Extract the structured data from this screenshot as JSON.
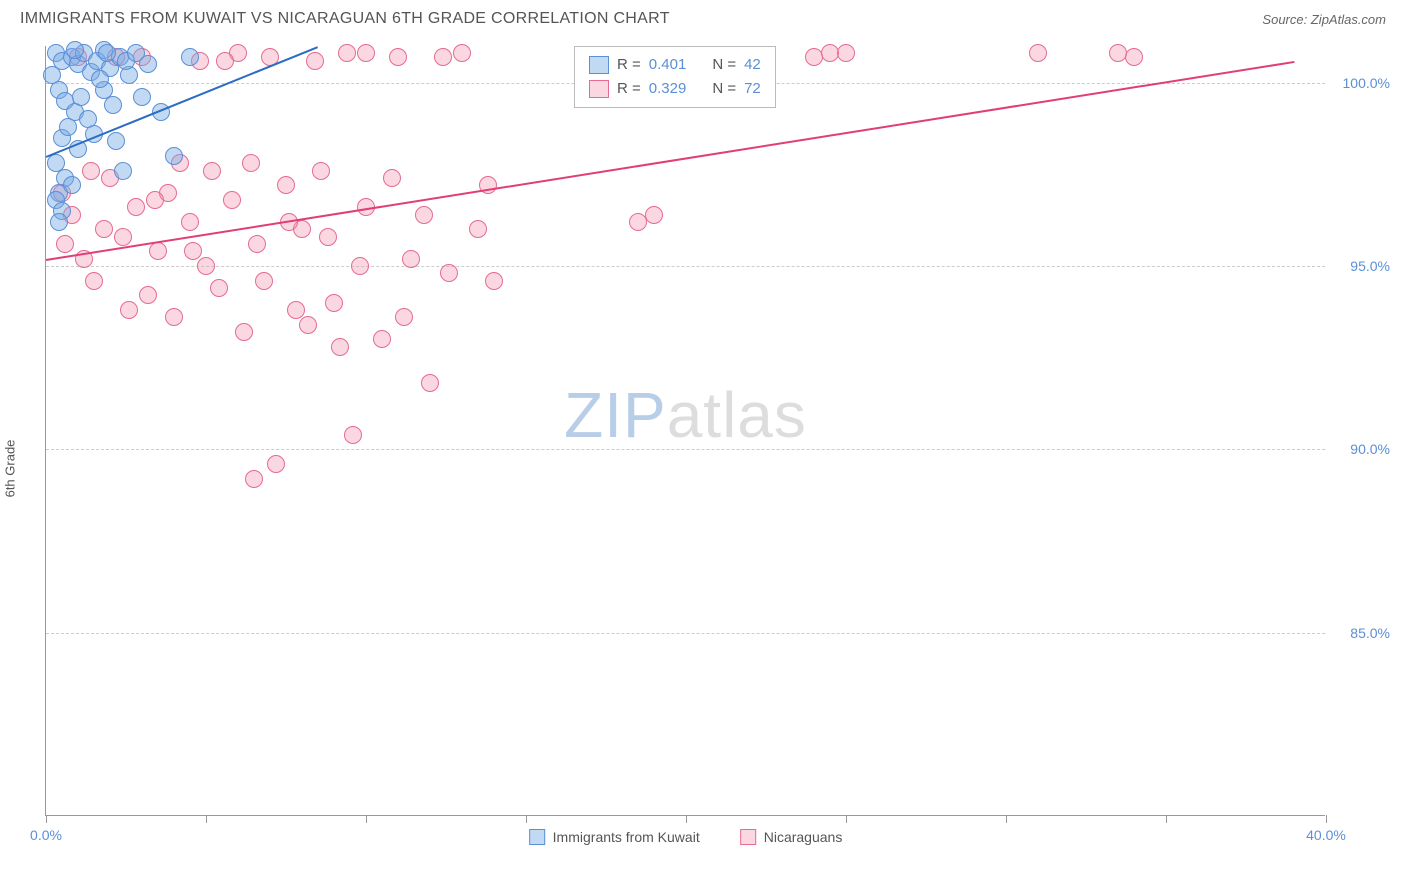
{
  "header": {
    "title": "IMMIGRANTS FROM KUWAIT VS NICARAGUAN 6TH GRADE CORRELATION CHART",
    "source_label": "Source:",
    "source_name": "ZipAtlas.com"
  },
  "chart": {
    "type": "scatter",
    "ylabel": "6th Grade",
    "xlim": [
      0,
      40
    ],
    "ylim": [
      80,
      101
    ],
    "xtick_values": [
      0,
      5,
      10,
      15,
      20,
      25,
      30,
      35,
      40
    ],
    "xtick_labels": {
      "0": "0.0%",
      "40": "40.0%"
    },
    "ytick_values": [
      85,
      90,
      95,
      100
    ],
    "ytick_labels": {
      "85": "85.0%",
      "90": "90.0%",
      "95": "95.0%",
      "100": "100.0%"
    },
    "background_color": "#ffffff",
    "grid_color": "#cccccc",
    "axis_color": "#999999",
    "tick_label_color": "#5b8fd6",
    "watermark": {
      "part1": "ZIP",
      "part2": "atlas",
      "color1": "#b8cde8",
      "color2": "#dddddd"
    },
    "series": [
      {
        "name": "Immigrants from Kuwait",
        "color_fill": "rgba(120,170,230,0.45)",
        "color_stroke": "#5b8fd6",
        "trend_color": "#2c6cc2",
        "marker_radius": 9,
        "R": "0.401",
        "N": "42",
        "trend": {
          "x1": 0,
          "y1": 98.0,
          "x2": 8.5,
          "y2": 101.0
        },
        "points": [
          [
            0.3,
            100.8
          ],
          [
            0.5,
            100.6
          ],
          [
            0.8,
            100.7
          ],
          [
            1.0,
            100.5
          ],
          [
            1.2,
            100.8
          ],
          [
            1.4,
            100.3
          ],
          [
            1.6,
            100.6
          ],
          [
            1.8,
            100.9
          ],
          [
            0.4,
            99.8
          ],
          [
            0.6,
            99.5
          ],
          [
            0.9,
            99.2
          ],
          [
            1.1,
            99.6
          ],
          [
            1.3,
            99.0
          ],
          [
            0.5,
            98.5
          ],
          [
            0.7,
            98.8
          ],
          [
            1.0,
            98.2
          ],
          [
            0.3,
            97.8
          ],
          [
            0.6,
            97.4
          ],
          [
            0.4,
            97.0
          ],
          [
            0.8,
            97.2
          ],
          [
            0.3,
            96.8
          ],
          [
            0.5,
            96.5
          ],
          [
            0.4,
            96.2
          ],
          [
            2.0,
            100.4
          ],
          [
            2.3,
            100.7
          ],
          [
            2.6,
            100.2
          ],
          [
            2.1,
            99.4
          ],
          [
            2.5,
            100.6
          ],
          [
            2.8,
            100.8
          ],
          [
            3.2,
            100.5
          ],
          [
            3.6,
            99.2
          ],
          [
            4.0,
            98.0
          ],
          [
            4.5,
            100.7
          ],
          [
            1.5,
            98.6
          ],
          [
            1.8,
            99.8
          ],
          [
            2.2,
            98.4
          ],
          [
            0.2,
            100.2
          ],
          [
            0.9,
            100.9
          ],
          [
            1.7,
            100.1
          ],
          [
            3.0,
            99.6
          ],
          [
            2.4,
            97.6
          ],
          [
            1.9,
            100.8
          ]
        ]
      },
      {
        "name": "Nicaraguans",
        "color_fill": "rgba(240,140,170,0.35)",
        "color_stroke": "#e66b94",
        "trend_color": "#e03e74",
        "marker_radius": 9,
        "R": "0.329",
        "N": "72",
        "trend": {
          "x1": 0,
          "y1": 95.2,
          "x2": 39.0,
          "y2": 100.6
        },
        "points": [
          [
            0.5,
            97.0
          ],
          [
            0.8,
            96.4
          ],
          [
            1.2,
            95.2
          ],
          [
            1.5,
            94.6
          ],
          [
            1.8,
            96.0
          ],
          [
            2.0,
            97.4
          ],
          [
            2.4,
            95.8
          ],
          [
            2.8,
            96.6
          ],
          [
            3.2,
            94.2
          ],
          [
            3.5,
            95.4
          ],
          [
            3.8,
            97.0
          ],
          [
            4.0,
            93.6
          ],
          [
            4.5,
            96.2
          ],
          [
            4.8,
            100.6
          ],
          [
            5.0,
            95.0
          ],
          [
            5.4,
            94.4
          ],
          [
            5.8,
            96.8
          ],
          [
            6.0,
            100.8
          ],
          [
            6.2,
            93.2
          ],
          [
            6.6,
            95.6
          ],
          [
            7.0,
            100.7
          ],
          [
            7.2,
            89.6
          ],
          [
            7.5,
            97.2
          ],
          [
            8.0,
            96.0
          ],
          [
            8.4,
            100.6
          ],
          [
            8.8,
            95.8
          ],
          [
            9.0,
            94.0
          ],
          [
            9.2,
            92.8
          ],
          [
            9.6,
            90.4
          ],
          [
            10.0,
            96.6
          ],
          [
            10.0,
            100.8
          ],
          [
            10.5,
            93.0
          ],
          [
            11.0,
            100.7
          ],
          [
            11.4,
            95.2
          ],
          [
            11.8,
            96.4
          ],
          [
            12.0,
            91.8
          ],
          [
            12.6,
            94.8
          ],
          [
            13.0,
            100.8
          ],
          [
            13.5,
            96.0
          ],
          [
            14.0,
            94.6
          ],
          [
            6.5,
            89.2
          ],
          [
            7.8,
            93.8
          ],
          [
            8.6,
            97.6
          ],
          [
            10.8,
            97.4
          ],
          [
            3.0,
            100.7
          ],
          [
            4.2,
            97.8
          ],
          [
            5.6,
            100.6
          ],
          [
            6.8,
            94.6
          ],
          [
            19.0,
            96.4
          ],
          [
            24.5,
            100.8
          ],
          [
            34.0,
            100.7
          ],
          [
            2.2,
            100.7
          ],
          [
            9.4,
            100.8
          ],
          [
            1.0,
            100.7
          ],
          [
            4.6,
            95.4
          ],
          [
            5.2,
            97.6
          ],
          [
            7.6,
            96.2
          ],
          [
            8.2,
            93.4
          ],
          [
            11.2,
            93.6
          ],
          [
            12.4,
            100.7
          ],
          [
            3.4,
            96.8
          ],
          [
            6.4,
            97.8
          ],
          [
            9.8,
            95.0
          ],
          [
            2.6,
            93.8
          ],
          [
            1.4,
            97.6
          ],
          [
            0.6,
            95.6
          ],
          [
            13.8,
            97.2
          ],
          [
            24.0,
            100.7
          ],
          [
            18.5,
            96.2
          ],
          [
            25.0,
            100.8
          ],
          [
            31.0,
            100.8
          ],
          [
            33.5,
            100.8
          ]
        ]
      }
    ],
    "legend_top": {
      "R_label": "R =",
      "N_label": "N ="
    },
    "legend_bottom_labels": [
      "Immigrants from Kuwait",
      "Nicaraguans"
    ]
  }
}
